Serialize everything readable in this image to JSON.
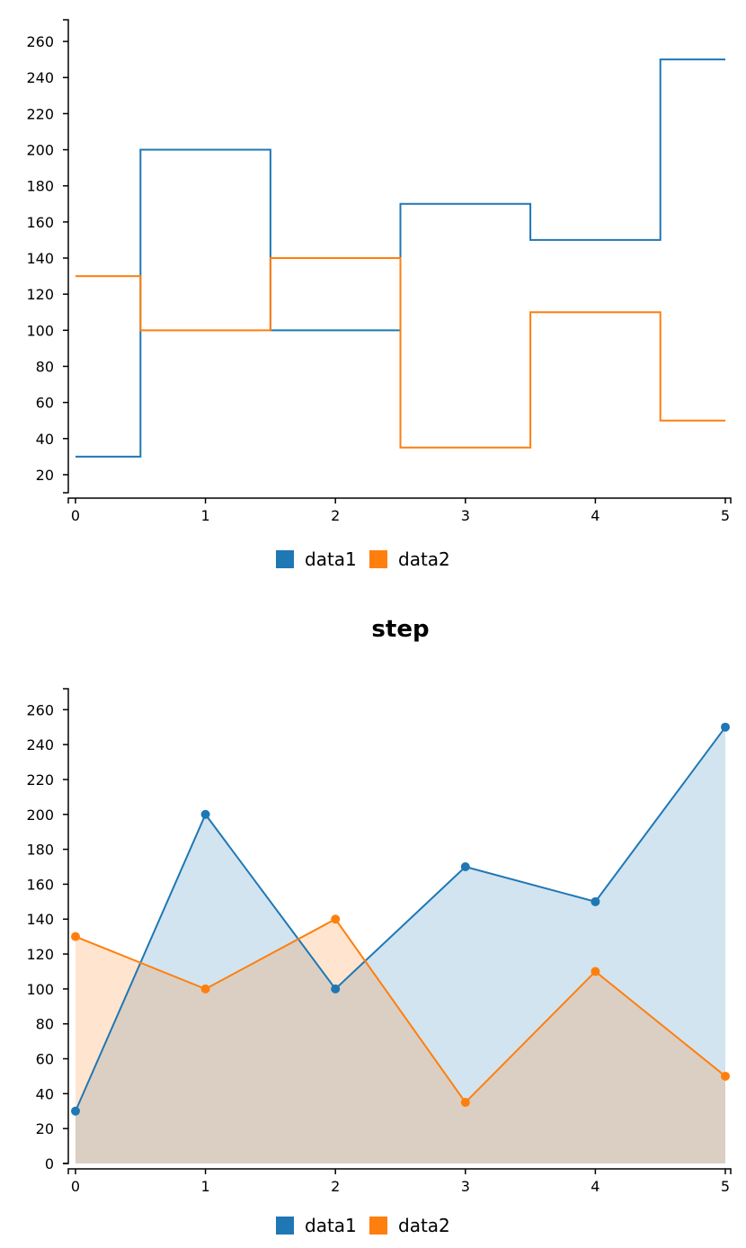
{
  "chart_data": [
    {
      "type": "line",
      "step": true,
      "title": "",
      "x": [
        0,
        1,
        2,
        3,
        4,
        5
      ],
      "series": [
        {
          "name": "data1",
          "values": [
            30,
            200,
            100,
            170,
            150,
            250
          ],
          "color": "#1f77b4"
        },
        {
          "name": "data2",
          "values": [
            130,
            100,
            140,
            35,
            110,
            50
          ],
          "color": "#ff7f0e"
        }
      ],
      "xlim": [
        0,
        5
      ],
      "ylim": [
        10,
        272
      ],
      "yticks": [
        20,
        40,
        60,
        80,
        100,
        120,
        140,
        160,
        180,
        200,
        220,
        240,
        260
      ],
      "xticks": [
        0,
        1,
        2,
        3,
        4,
        5
      ],
      "grid": false,
      "legend": "bottom-center"
    },
    {
      "type": "area",
      "title": "step",
      "x": [
        0,
        1,
        2,
        3,
        4,
        5
      ],
      "series": [
        {
          "name": "data1",
          "values": [
            30,
            200,
            100,
            170,
            150,
            250
          ],
          "color": "#1f77b4"
        },
        {
          "name": "data2",
          "values": [
            130,
            100,
            140,
            35,
            110,
            50
          ],
          "color": "#ff7f0e"
        }
      ],
      "xlim": [
        0,
        5
      ],
      "ylim": [
        0,
        272
      ],
      "yticks": [
        0,
        20,
        40,
        60,
        80,
        100,
        120,
        140,
        160,
        180,
        200,
        220,
        240,
        260
      ],
      "xticks": [
        0,
        1,
        2,
        3,
        4,
        5
      ],
      "grid": false,
      "legend": "bottom-center",
      "markers": true
    }
  ]
}
